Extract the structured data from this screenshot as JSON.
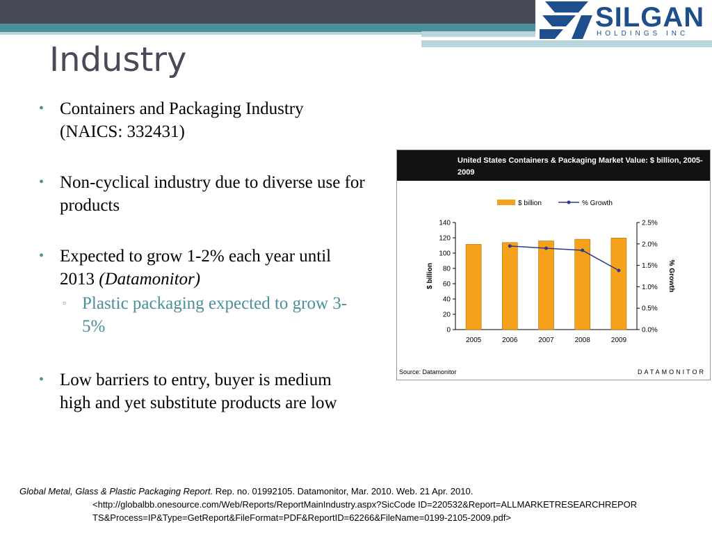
{
  "header": {
    "logo_text": "SILGAN",
    "logo_subtext": "HOLDINGS INC"
  },
  "slide": {
    "title": "Industry",
    "bullets": [
      {
        "text": "Containers and Packaging Industry (NAICS: 332431)"
      },
      {
        "text": "Non-cyclical industry due to diverse use for products"
      },
      {
        "text_main": "Expected to grow 1-2% each year until 2013",
        "text_source": "(Datamonitor)",
        "sub": "Plastic packaging expected to grow 3-5%"
      },
      {
        "text": "Low barriers to entry, buyer is medium high and yet substitute products are low"
      }
    ]
  },
  "chart_box": {
    "source": "Source: Datamonitor",
    "brand": "DATAMONITOR"
  },
  "chart_data": {
    "type": "bar",
    "title": "United States Containers & Packaging Market Value: $ billion, 2005-2009",
    "categories": [
      "2005",
      "2006",
      "2007",
      "2008",
      "2009"
    ],
    "series": [
      {
        "name": "$ billion",
        "type": "bar",
        "axis": "left",
        "values": [
          111.5,
          113.8,
          115.9,
          118.1,
          119.7
        ],
        "color": "#f5a11c"
      },
      {
        "name": "% Growth",
        "type": "line",
        "axis": "right",
        "values": [
          null,
          1.95,
          1.9,
          1.85,
          1.38
        ],
        "color": "#2b3a8a"
      }
    ],
    "ylabel": "$ billion",
    "y2label": "% Growth",
    "ylim": [
      0,
      140
    ],
    "y2lim": [
      0,
      2.5
    ],
    "yticks": [
      "0",
      "20",
      "40",
      "60",
      "80",
      "100",
      "120",
      "140"
    ],
    "y2ticks": [
      "0.0%",
      "0.5%",
      "1.0%",
      "1.5%",
      "2.0%",
      "2.5%"
    ],
    "legend": "top-center",
    "grid": false
  },
  "citation": {
    "italic": "Global Metal, Glass & Plastic Packaging Report.",
    "rest": " Rep. no. 01992105. Datamonitor, Mar. 2010. Web. 21 Apr. 2010.",
    "url": "<http://globalbb.onesource.com/Web/Reports/ReportMainIndustry.aspx?SicCode ID=220532&Report=ALLMARKETRESEARCHREPOR TS&Process=IP&Type=GetReport&FileFormat=PDF&ReportID=62266&FileName=0199-2105-2009.pdf>"
  },
  "colors": {
    "title": "#474a57",
    "accent": "#4a8f99",
    "logo": "#1f4e8c"
  }
}
